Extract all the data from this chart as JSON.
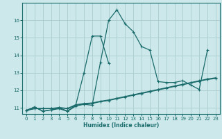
{
  "xlabel": "Humidex (Indice chaleur)",
  "bg_color": "#cce8ea",
  "grid_color": "#aed0d2",
  "line_color": "#1a6b6b",
  "xlim": [
    -0.5,
    23.5
  ],
  "ylim": [
    10.65,
    17.0
  ],
  "xticks": [
    0,
    1,
    2,
    3,
    4,
    5,
    6,
    7,
    8,
    9,
    10,
    11,
    12,
    13,
    14,
    15,
    16,
    17,
    18,
    19,
    20,
    21,
    22,
    23
  ],
  "yticks": [
    11,
    12,
    13,
    14,
    15,
    16
  ],
  "series": [
    {
      "x": [
        0,
        1,
        2,
        3,
        4,
        5,
        6,
        7,
        8,
        9,
        10,
        11,
        12,
        13,
        14,
        15,
        16,
        17,
        18,
        19,
        20,
        21,
        22
      ],
      "y": [
        10.85,
        11.05,
        10.8,
        10.88,
        10.95,
        10.8,
        11.1,
        11.2,
        11.15,
        13.6,
        16.0,
        16.6,
        15.8,
        15.35,
        14.5,
        14.3,
        12.5,
        12.45,
        12.45,
        12.55,
        12.3,
        12.05,
        14.3
      ]
    },
    {
      "x": [
        0,
        1,
        2,
        3,
        4,
        5,
        6,
        7,
        8,
        9,
        10
      ],
      "y": [
        10.85,
        11.05,
        10.82,
        10.88,
        11.0,
        10.82,
        11.15,
        13.0,
        15.1,
        15.1,
        13.55
      ]
    },
    {
      "x": [
        0,
        1,
        2,
        3,
        4,
        5,
        6,
        7,
        8,
        9,
        10,
        11,
        12,
        13,
        14,
        15,
        16,
        17,
        18,
        19,
        20,
        21,
        22,
        23
      ],
      "y": [
        10.85,
        10.97,
        10.97,
        10.97,
        11.02,
        10.97,
        11.18,
        11.25,
        11.28,
        11.38,
        11.45,
        11.55,
        11.65,
        11.75,
        11.85,
        11.95,
        12.05,
        12.15,
        12.25,
        12.35,
        12.45,
        12.55,
        12.65,
        12.72
      ]
    },
    {
      "x": [
        0,
        1,
        2,
        3,
        4,
        5,
        6,
        7,
        8,
        9,
        10,
        11,
        12,
        13,
        14,
        15,
        16,
        17,
        18,
        19,
        20,
        21,
        22,
        23
      ],
      "y": [
        10.85,
        10.95,
        10.95,
        10.95,
        11.0,
        10.95,
        11.15,
        11.22,
        11.25,
        11.35,
        11.42,
        11.52,
        11.62,
        11.72,
        11.82,
        11.92,
        12.02,
        12.12,
        12.22,
        12.32,
        12.42,
        12.52,
        12.62,
        12.68
      ]
    }
  ]
}
